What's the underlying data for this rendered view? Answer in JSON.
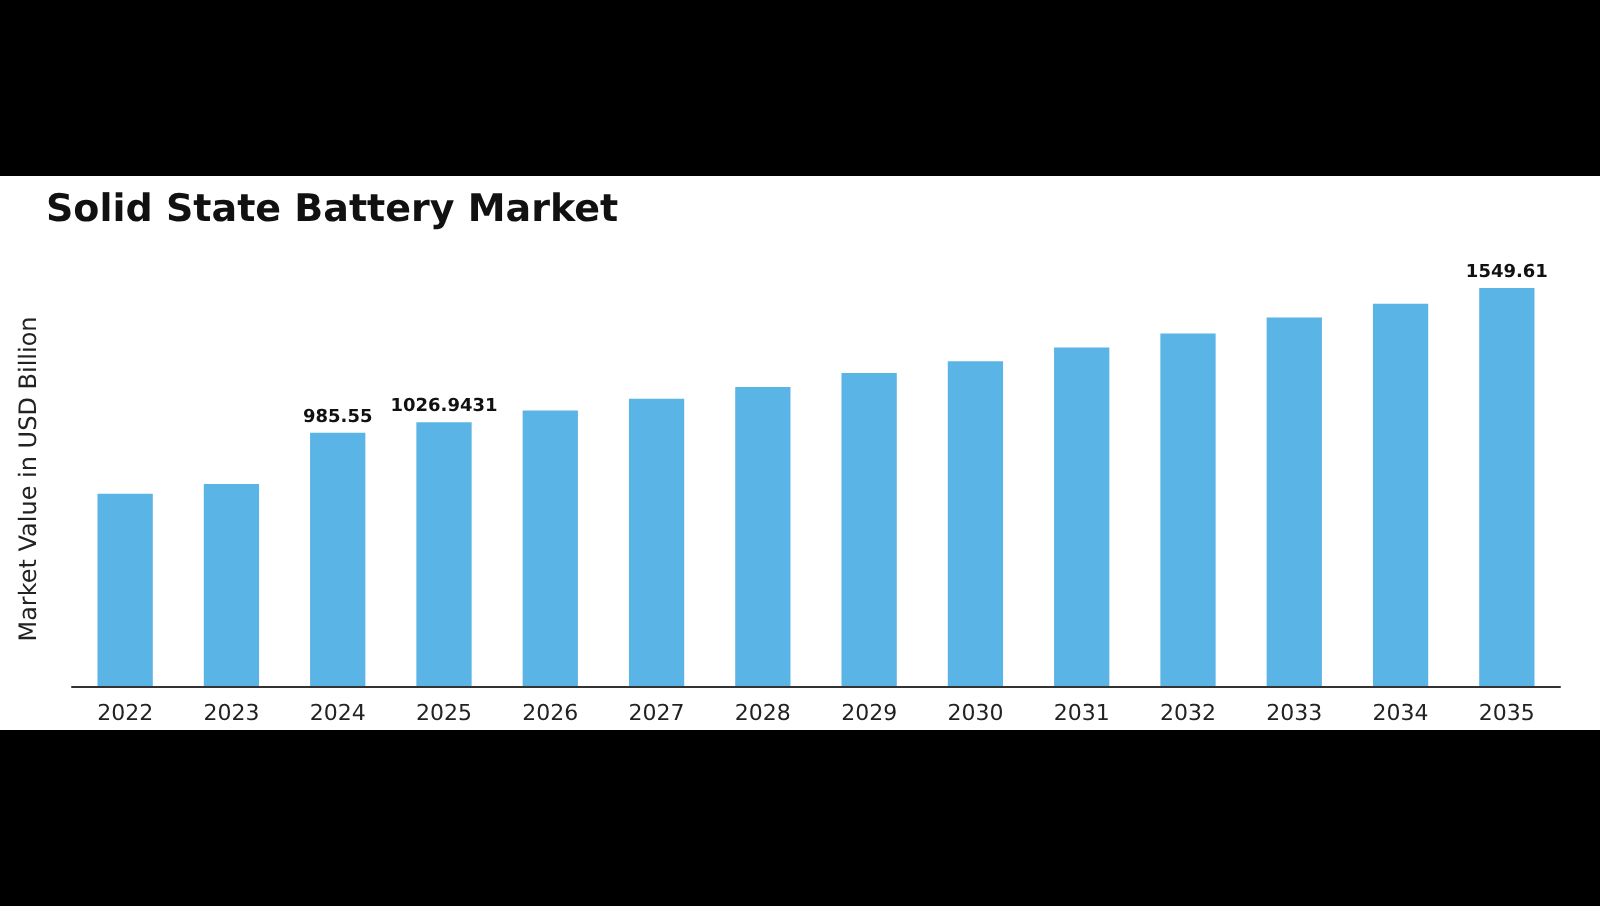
{
  "chart_data": {
    "type": "bar",
    "title": "Solid State Battery Market",
    "ylabel": "Market Value in USD Billion",
    "categories": [
      "2022",
      "2023",
      "2024",
      "2025",
      "2026",
      "2027",
      "2028",
      "2029",
      "2030",
      "2031",
      "2032",
      "2033",
      "2034",
      "2035"
    ],
    "values": [
      748,
      786,
      985.55,
      1026.9431,
      1072,
      1118,
      1164,
      1218,
      1264,
      1318,
      1372,
      1434,
      1488,
      1549.61
    ],
    "value_labels": [
      null,
      null,
      "985.55",
      "1026.9431",
      null,
      null,
      null,
      null,
      null,
      null,
      null,
      null,
      null,
      "1549.61"
    ],
    "color": "#5ab4e5"
  }
}
